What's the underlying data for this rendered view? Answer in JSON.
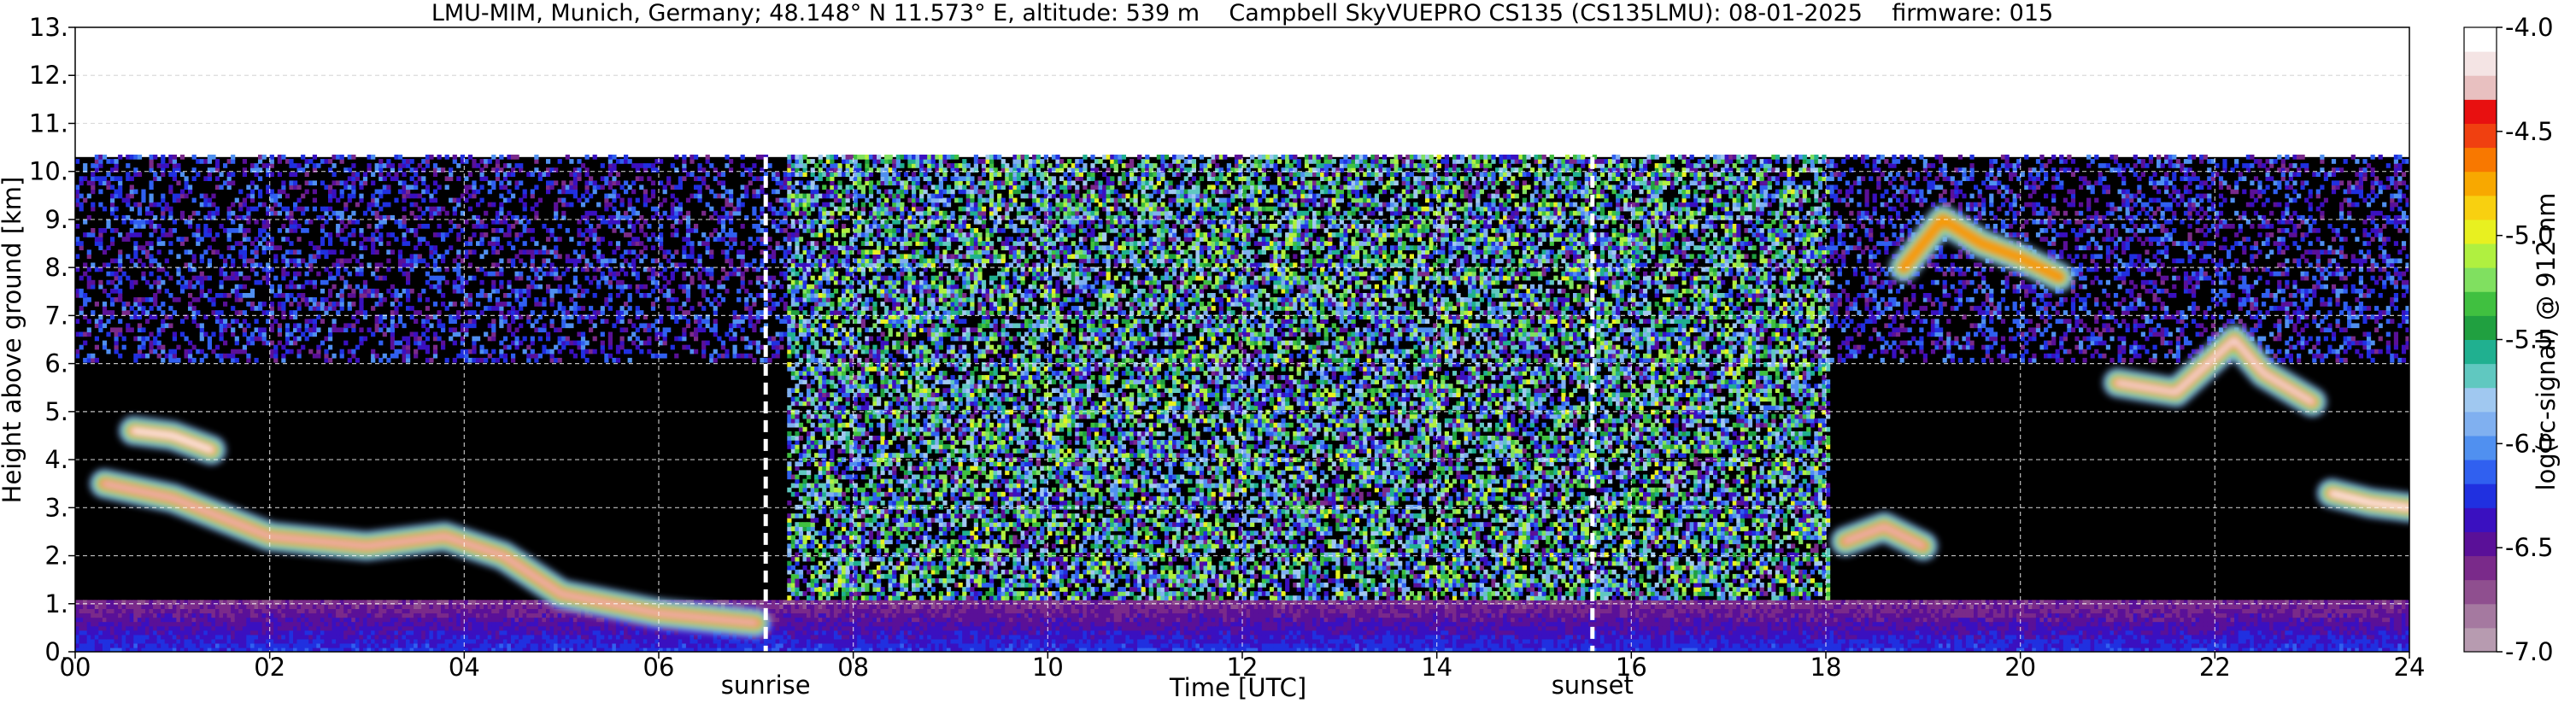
{
  "chart_data": {
    "type": "heatmap",
    "title": "LMU-MIM, Munich, Germany; 48.148° N 11.573° E, altitude: 539 m    Campbell SkyVUEPRO CS135 (CS135LMU): 08-01-2025    firmware: 015",
    "xlabel": "Time [UTC]",
    "ylabel": "Height above ground [km]",
    "xlim": [
      0,
      24
    ],
    "ylim": [
      0,
      13
    ],
    "x_ticks": [
      "00",
      "02",
      "04",
      "06",
      "08",
      "10",
      "12",
      "14",
      "16",
      "18",
      "20",
      "22",
      "24"
    ],
    "x_tick_values": [
      0,
      2,
      4,
      6,
      8,
      10,
      12,
      14,
      16,
      18,
      20,
      22,
      24
    ],
    "y_ticks": [
      "0.",
      "1.",
      "2.",
      "3.",
      "4.",
      "5.",
      "6.",
      "7.",
      "8.",
      "9.",
      "10.",
      "11.",
      "12.",
      "13."
    ],
    "y_tick_values": [
      0,
      1,
      2,
      3,
      4,
      5,
      6,
      7,
      8,
      9,
      10,
      11,
      12,
      13
    ],
    "grid": true,
    "data_top_km": 10.3,
    "markers": [
      {
        "label": "sunrise",
        "x": 7.1
      },
      {
        "label": "sunset",
        "x": 15.6
      }
    ],
    "colorbar": {
      "label": "log(rc-signal) @ 912 nm",
      "range": [
        -7.0,
        -4.0
      ],
      "ticks": [
        "-4.0",
        "-4.5",
        "-5.0",
        "-5.5",
        "-6.0",
        "-6.5",
        "-7.0"
      ],
      "tick_values": [
        -4.0,
        -4.5,
        -5.0,
        -5.5,
        -6.0,
        -6.5,
        -7.0
      ],
      "colors": [
        "#b79bb0",
        "#a579a0",
        "#8f4f8f",
        "#7a2a8a",
        "#5a1098",
        "#3a10c0",
        "#2030e0",
        "#3060f0",
        "#5090f0",
        "#80b0f0",
        "#a0c8f0",
        "#60c8c0",
        "#20b090",
        "#20a040",
        "#40c040",
        "#80e060",
        "#b0f040",
        "#e8f020",
        "#f8d010",
        "#f8a800",
        "#f87800",
        "#f04010",
        "#e81010",
        "#e8c0c0",
        "#f4e4e4",
        "#ffffff"
      ]
    },
    "features": [
      {
        "name": "boundary-layer aerosol",
        "kind": "band",
        "x0": 0,
        "x1": 24,
        "y0": 0.0,
        "y1": 1.0,
        "value": -6.6
      },
      {
        "name": "cloud layer 02-05",
        "kind": "cloud",
        "points": [
          [
            0.3,
            3.5
          ],
          [
            1.0,
            3.2
          ],
          [
            1.5,
            2.8
          ],
          [
            2.0,
            2.4
          ],
          [
            3.0,
            2.2
          ],
          [
            3.8,
            2.4
          ],
          [
            4.4,
            2.0
          ],
          [
            5.0,
            1.2
          ],
          [
            6.0,
            0.8
          ],
          [
            7.0,
            0.6
          ]
        ],
        "value": -4.3
      },
      {
        "name": "cloud 0.6h 4.5km",
        "kind": "cloud",
        "points": [
          [
            0.6,
            4.6
          ],
          [
            1.0,
            4.5
          ],
          [
            1.4,
            4.2
          ]
        ],
        "value": -4.0
      },
      {
        "name": "high cirrus noise 07-18",
        "kind": "region",
        "x0": 7.3,
        "x1": 18.0,
        "y0": 0.4,
        "y1": 10.3,
        "value": -5.8
      },
      {
        "name": "cirrus 19-21",
        "kind": "cloud",
        "points": [
          [
            18.8,
            8.0
          ],
          [
            19.2,
            9.0
          ],
          [
            19.6,
            8.5
          ],
          [
            20.0,
            8.2
          ],
          [
            20.4,
            7.8
          ]
        ],
        "value": -4.8
      },
      {
        "name": "cloud 21-23 5km",
        "kind": "cloud",
        "points": [
          [
            21.0,
            5.6
          ],
          [
            21.6,
            5.4
          ],
          [
            22.2,
            6.5
          ],
          [
            22.5,
            5.8
          ],
          [
            23.0,
            5.2
          ]
        ],
        "value": -4.2
      },
      {
        "name": "cloud 23-24 3km",
        "kind": "cloud",
        "points": [
          [
            23.2,
            3.3
          ],
          [
            23.6,
            3.1
          ],
          [
            24.0,
            3.0
          ]
        ],
        "value": -4.1
      },
      {
        "name": "low cloud 18-19",
        "kind": "cloud",
        "points": [
          [
            18.2,
            2.3
          ],
          [
            18.6,
            2.6
          ],
          [
            19.0,
            2.2
          ]
        ],
        "value": -4.3
      }
    ]
  }
}
